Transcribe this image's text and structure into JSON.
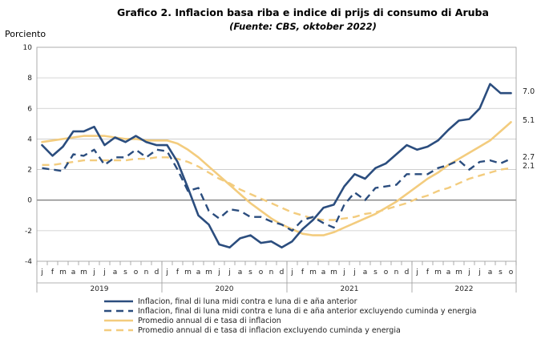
{
  "chart_data": {
    "type": "line",
    "title": "Grafico 2. Inflacion basa riba e indice di prijs di consumo di Aruba",
    "subtitle": "(Fuente: CBS, oktober 2022)",
    "ylabel": "Porciento",
    "ylim": [
      -4,
      10
    ],
    "yticks": [
      -4,
      -2,
      0,
      2,
      4,
      6,
      8,
      10
    ],
    "grid": true,
    "legend_position": "bottom",
    "months": [
      "j",
      "f",
      "m",
      "a",
      "m",
      "j",
      "j",
      "a",
      "s",
      "o",
      "n",
      "d",
      "j",
      "f",
      "m",
      "a",
      "m",
      "j",
      "j",
      "a",
      "s",
      "o",
      "n",
      "d",
      "j",
      "f",
      "m",
      "a",
      "m",
      "j",
      "j",
      "a",
      "s",
      "o",
      "n",
      "d",
      "j",
      "f",
      "m",
      "a",
      "m",
      "j",
      "j",
      "a",
      "s",
      "o"
    ],
    "years": [
      {
        "label": "2019",
        "start": 0,
        "count": 12
      },
      {
        "label": "2020",
        "start": 12,
        "count": 12
      },
      {
        "label": "2021",
        "start": 24,
        "count": 12
      },
      {
        "label": "2022",
        "start": 36,
        "count": 10
      }
    ],
    "end_labels": [
      {
        "text": "7.0",
        "value": 7.0
      },
      {
        "text": "5.1",
        "value": 5.1
      },
      {
        "text": "2.7",
        "value": 2.7
      },
      {
        "text": "2.1",
        "value": 2.1
      }
    ],
    "series": [
      {
        "name": "Inflacion, final di luna midi contra e luna di e aña anterior",
        "color": "#2b4d7e",
        "style": "solid",
        "values": [
          3.6,
          2.9,
          3.5,
          4.5,
          4.5,
          4.8,
          3.6,
          4.1,
          3.8,
          4.2,
          3.8,
          3.6,
          3.6,
          2.5,
          0.8,
          -1.0,
          -1.6,
          -2.9,
          -3.1,
          -2.5,
          -2.3,
          -2.8,
          -2.7,
          -3.1,
          -2.7,
          -1.9,
          -1.3,
          -0.5,
          -0.3,
          0.9,
          1.7,
          1.4,
          2.1,
          2.4,
          3.0,
          3.6,
          3.3,
          3.5,
          3.9,
          4.6,
          5.2,
          5.3,
          6.0,
          7.6,
          7.0,
          7.0
        ]
      },
      {
        "name": "Inflacion, final di luna midi contra e luna di e aña anterior excluyendo cuminda y energia",
        "color": "#2b4d7e",
        "style": "dashed",
        "values": [
          2.1,
          2.0,
          1.9,
          3.0,
          2.9,
          3.3,
          2.3,
          2.8,
          2.8,
          3.3,
          2.8,
          3.3,
          3.2,
          2.0,
          0.6,
          0.8,
          -0.7,
          -1.2,
          -0.6,
          -0.7,
          -1.1,
          -1.1,
          -1.4,
          -1.6,
          -2.0,
          -1.3,
          -1.1,
          -1.5,
          -1.8,
          -0.3,
          0.5,
          0.0,
          0.8,
          0.9,
          1.0,
          1.7,
          1.7,
          1.7,
          2.1,
          2.3,
          2.6,
          2.0,
          2.5,
          2.6,
          2.4,
          2.7
        ]
      },
      {
        "name": "Promedio annual di e tasa di inflacion",
        "color": "#f3cc7e",
        "style": "solid",
        "values": [
          3.8,
          3.9,
          4.0,
          4.1,
          4.2,
          4.2,
          4.2,
          4.1,
          4.0,
          4.0,
          3.9,
          3.9,
          3.9,
          3.7,
          3.3,
          2.8,
          2.2,
          1.6,
          1.0,
          0.4,
          -0.2,
          -0.7,
          -1.2,
          -1.6,
          -1.9,
          -2.2,
          -2.3,
          -2.3,
          -2.1,
          -1.8,
          -1.5,
          -1.2,
          -0.9,
          -0.5,
          -0.1,
          0.4,
          0.9,
          1.4,
          1.8,
          2.3,
          2.7,
          3.1,
          3.5,
          3.9,
          4.5,
          5.1
        ]
      },
      {
        "name": "Promedio annual di e tasa di inflacion excluyendo cuminda y energia",
        "color": "#f3cc7e",
        "style": "dashed",
        "values": [
          2.3,
          2.3,
          2.4,
          2.5,
          2.6,
          2.6,
          2.6,
          2.6,
          2.6,
          2.7,
          2.7,
          2.8,
          2.8,
          2.7,
          2.5,
          2.2,
          1.8,
          1.4,
          1.1,
          0.7,
          0.4,
          0.1,
          -0.2,
          -0.5,
          -0.8,
          -1.0,
          -1.2,
          -1.3,
          -1.3,
          -1.2,
          -1.1,
          -0.9,
          -0.8,
          -0.6,
          -0.4,
          -0.2,
          0.1,
          0.3,
          0.6,
          0.8,
          1.1,
          1.4,
          1.6,
          1.8,
          2.0,
          2.1
        ]
      }
    ]
  }
}
